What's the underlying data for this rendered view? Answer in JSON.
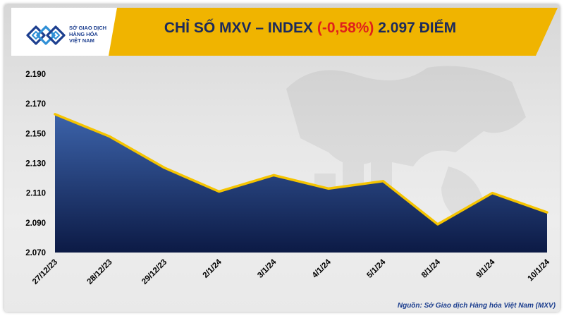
{
  "header": {
    "logo_lines": [
      "SỞ GIAO DỊCH",
      "HÀNG HÓA",
      "VIỆT NAM"
    ],
    "title_prefix": "CHỈ SỐ MXV – INDEX ",
    "title_change": "(-0,58%)",
    "title_suffix": " 2.097 ĐIỂM"
  },
  "source": "Nguồn: Sở Giao dịch Hàng hóa Việt Nam (MXV)",
  "colors": {
    "header_band": "#f0b400",
    "title_text": "#1b2a5c",
    "change_text": "#e0201b",
    "line": "#f5c400",
    "area_top": "#3c63aa",
    "area_bottom": "#0c1a45",
    "logo_blue": "#1d3f8f"
  },
  "chart_data": {
    "type": "area",
    "title": "CHỈ SỐ MXV – INDEX (-0,58%) 2.097 ĐIỂM",
    "xlabel": "",
    "ylabel": "",
    "categories": [
      "27/12/23",
      "28/12/23",
      "29/12/23",
      "2/1/24",
      "3/1/24",
      "4/1/24",
      "5/1/24",
      "8/1/24",
      "9/1/24",
      "10/1/24"
    ],
    "values": [
      2163,
      2148,
      2127,
      2111,
      2122,
      2113,
      2118,
      2089,
      2110,
      2097
    ],
    "ylim": [
      2070,
      2190
    ],
    "yticks": [
      "2.070",
      "2.090",
      "2.110",
      "2.130",
      "2.150",
      "2.170",
      "2.190"
    ],
    "grid": false,
    "legend": "none"
  }
}
